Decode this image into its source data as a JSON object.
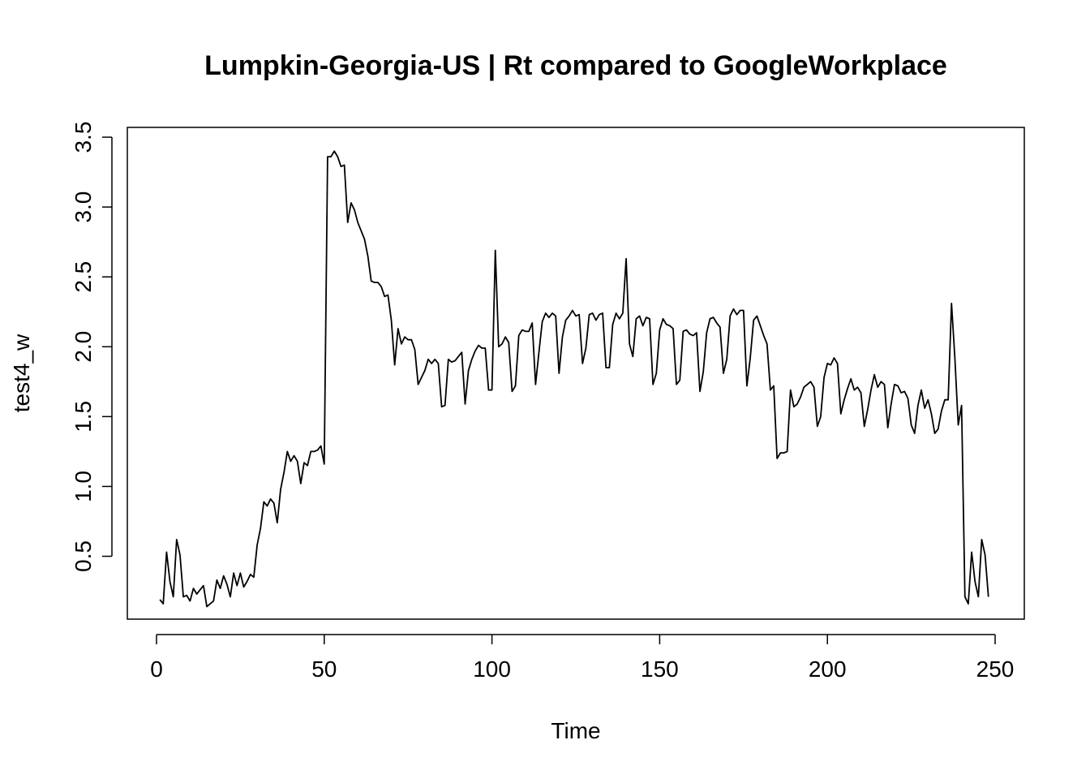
{
  "chart_data": {
    "type": "line",
    "title": "Lumpkin-Georgia-US | Rt compared to GoogleWorkplace",
    "xlabel": "Time",
    "ylabel": "test4_w",
    "xlim": [
      -8.7,
      258.7
    ],
    "ylim": [
      0.05,
      3.57
    ],
    "xticks": [
      0,
      50,
      100,
      150,
      200,
      250
    ],
    "yticks": [
      0.5,
      1.0,
      1.5,
      2.0,
      2.5,
      3.0,
      3.5
    ],
    "xtick_labels": [
      "0",
      "50",
      "100",
      "150",
      "200",
      "250"
    ],
    "ytick_labels": [
      "0.5",
      "1.0",
      "1.5",
      "2.0",
      "2.5",
      "3.0",
      "3.5"
    ],
    "grid": false,
    "legend": "none",
    "series": [
      {
        "x_start": 1,
        "values": [
          0.19,
          0.16,
          0.53,
          0.32,
          0.21,
          0.62,
          0.51,
          0.21,
          0.22,
          0.18,
          0.27,
          0.23,
          0.26,
          0.29,
          0.14,
          0.16,
          0.18,
          0.33,
          0.27,
          0.36,
          0.3,
          0.21,
          0.38,
          0.29,
          0.38,
          0.28,
          0.32,
          0.37,
          0.35,
          0.58,
          0.7,
          0.89,
          0.86,
          0.91,
          0.88,
          0.74,
          0.98,
          1.1,
          1.25,
          1.18,
          1.22,
          1.18,
          1.02,
          1.17,
          1.15,
          1.25,
          1.25,
          1.26,
          1.29,
          1.16,
          3.36,
          3.36,
          3.4,
          3.36,
          3.29,
          3.3,
          2.89,
          3.03,
          2.98,
          2.89,
          2.83,
          2.77,
          2.65,
          2.47,
          2.46,
          2.46,
          2.43,
          2.36,
          2.37,
          2.19,
          1.87,
          2.13,
          2.02,
          2.07,
          2.05,
          2.05,
          1.98,
          1.73,
          1.78,
          1.83,
          1.91,
          1.88,
          1.91,
          1.88,
          1.57,
          1.58,
          1.91,
          1.89,
          1.9,
          1.93,
          1.96,
          1.59,
          1.83,
          1.91,
          1.97,
          2.01,
          1.99,
          1.99,
          1.69,
          1.69,
          2.69,
          2.0,
          2.02,
          2.07,
          2.03,
          1.68,
          1.72,
          2.08,
          2.12,
          2.11,
          2.11,
          2.17,
          1.73,
          1.96,
          2.18,
          2.24,
          2.21,
          2.24,
          2.22,
          1.81,
          2.07,
          2.19,
          2.22,
          2.26,
          2.22,
          2.23,
          1.88,
          1.99,
          2.23,
          2.24,
          2.19,
          2.23,
          2.24,
          1.85,
          1.85,
          2.16,
          2.24,
          2.2,
          2.24,
          2.63,
          2.02,
          1.93,
          2.2,
          2.22,
          2.15,
          2.21,
          2.2,
          1.73,
          1.81,
          2.12,
          2.2,
          2.16,
          2.15,
          2.13,
          1.73,
          1.76,
          2.11,
          2.12,
          2.09,
          2.08,
          2.1,
          1.68,
          1.82,
          2.1,
          2.2,
          2.21,
          2.17,
          2.14,
          1.81,
          1.91,
          2.22,
          2.27,
          2.23,
          2.26,
          2.26,
          1.72,
          1.92,
          2.19,
          2.22,
          2.15,
          2.08,
          2.02,
          1.69,
          1.72,
          1.2,
          1.24,
          1.24,
          1.25,
          1.69,
          1.57,
          1.59,
          1.64,
          1.71,
          1.73,
          1.75,
          1.71,
          1.43,
          1.5,
          1.78,
          1.88,
          1.87,
          1.92,
          1.88,
          1.52,
          1.62,
          1.7,
          1.77,
          1.69,
          1.71,
          1.67,
          1.43,
          1.55,
          1.69,
          1.8,
          1.71,
          1.75,
          1.73,
          1.42,
          1.59,
          1.73,
          1.72,
          1.67,
          1.68,
          1.63,
          1.44,
          1.38,
          1.58,
          1.69,
          1.56,
          1.62,
          1.52,
          1.38,
          1.41,
          1.54,
          1.62,
          1.62,
          2.31,
          1.92,
          1.44,
          1.58,
          0.21,
          0.16,
          0.53,
          0.32,
          0.21,
          0.62,
          0.51,
          0.21
        ]
      }
    ]
  }
}
